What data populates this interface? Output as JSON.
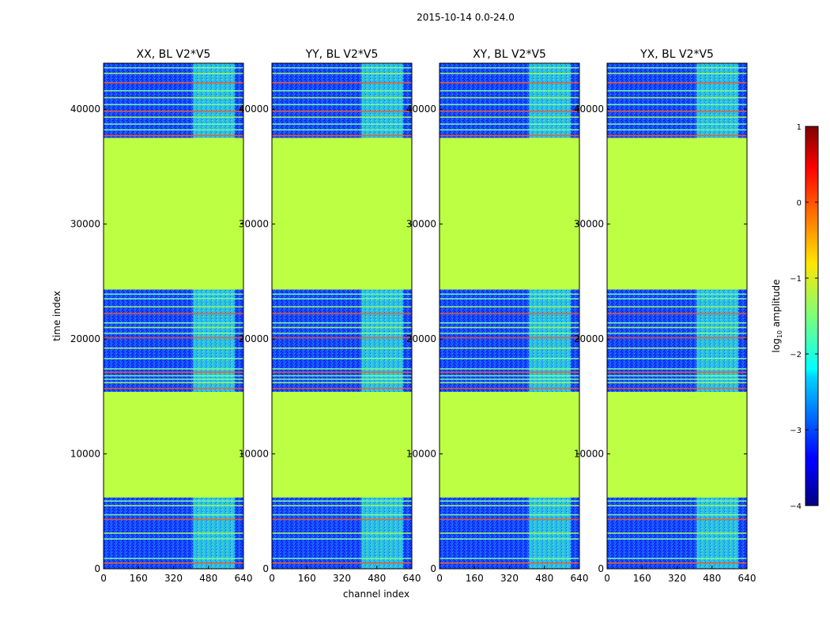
{
  "figure_title": "2015-10-14 0.0-24.0",
  "chart_data": {
    "type": "heatmap",
    "title": "2015-10-14 0.0-24.0",
    "xlabel": "channel index",
    "ylabel": "time index",
    "xlim": [
      0,
      640
    ],
    "ylim": [
      0,
      44000
    ],
    "x_ticks": [
      "0",
      "160",
      "320",
      "480",
      "640"
    ],
    "x_tick_values": [
      0,
      160,
      320,
      480,
      640
    ],
    "y_ticks": [
      "0",
      "10000",
      "20000",
      "30000",
      "40000"
    ],
    "y_tick_values": [
      0,
      10000,
      20000,
      30000,
      40000
    ],
    "panels": [
      {
        "title": "XX, BL V2*V5"
      },
      {
        "title": "YY, BL V2*V5"
      },
      {
        "title": "XY, BL V2*V5"
      },
      {
        "title": "YX, BL V2*V5"
      }
    ],
    "flagged_time_ranges": [
      [
        6200,
        15400
      ],
      [
        24300,
        37500
      ]
    ],
    "flagged_log_amplitude": -1.2,
    "active_channel_band": [
      410,
      600
    ],
    "colorbar": {
      "label": "log$_{10}$ amplitude",
      "label_main": "log",
      "label_sub": "10",
      "label_rest": " amplitude",
      "range": [
        -4,
        1
      ],
      "ticks": [
        "1",
        "0",
        "−1",
        "−2",
        "−3",
        "−4"
      ],
      "tick_values": [
        1,
        0,
        -1,
        -2,
        -3,
        -4
      ],
      "colormap": "jet"
    }
  }
}
